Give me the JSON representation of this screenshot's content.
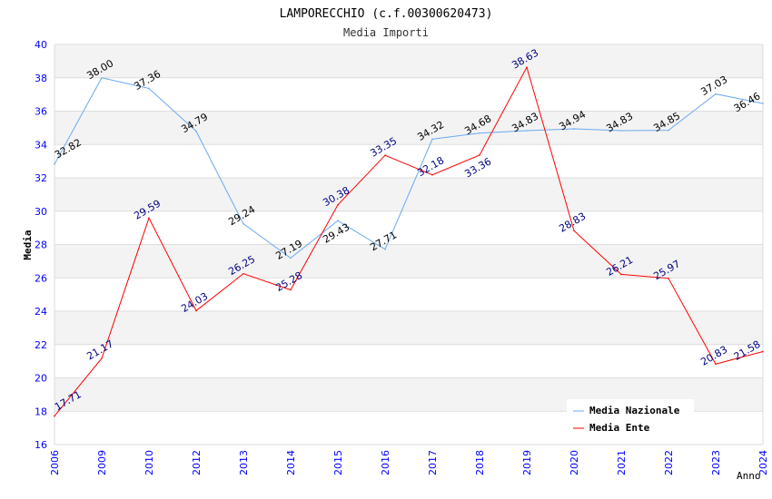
{
  "chart_data": {
    "type": "line",
    "title": "LAMPORECCHIO (c.f.00300620473)",
    "subtitle": "Media Importi",
    "xlabel": "Anno",
    "ylabel": "Media",
    "ylim": [
      16,
      40
    ],
    "yticks": [
      "16",
      "18",
      "20",
      "22",
      "24",
      "26",
      "28",
      "30",
      "32",
      "34",
      "36",
      "38",
      "40"
    ],
    "categories": [
      "2006",
      "2009",
      "2010",
      "2012",
      "2013",
      "2014",
      "2015",
      "2016",
      "2017",
      "2018",
      "2019",
      "2020",
      "2021",
      "2022",
      "2023",
      "2024"
    ],
    "legend_position": "top-right",
    "series": [
      {
        "name": "Media Nazionale",
        "color": "#6aaaf0",
        "label_color": "#000000",
        "values": [
          32.82,
          38.0,
          37.36,
          34.79,
          29.24,
          27.19,
          29.43,
          27.71,
          34.32,
          34.68,
          34.83,
          34.94,
          34.83,
          34.85,
          37.03,
          36.46
        ],
        "labels": [
          "32.82",
          "38.00",
          "37.36",
          "34.79",
          "29.24",
          "27.19",
          "29.43",
          "27.71",
          "34.32",
          "34.68",
          "34.83",
          "34.94",
          "34.83",
          "34.85",
          "37.03",
          "36.46"
        ]
      },
      {
        "name": "Media Ente",
        "color": "#ff0000",
        "label_color": "#000080",
        "values": [
          17.71,
          21.17,
          29.59,
          24.03,
          26.25,
          25.28,
          30.38,
          33.35,
          32.18,
          33.36,
          38.63,
          28.83,
          26.21,
          25.97,
          20.83,
          21.58
        ],
        "labels": [
          "17.71",
          "21.17",
          "29.59",
          "24.03",
          "26.25",
          "25.28",
          "30.38",
          "33.35",
          "32.18",
          "33.36",
          "38.63",
          "28.83",
          "26.21",
          "25.97",
          "20.83",
          "21.58"
        ]
      }
    ]
  }
}
